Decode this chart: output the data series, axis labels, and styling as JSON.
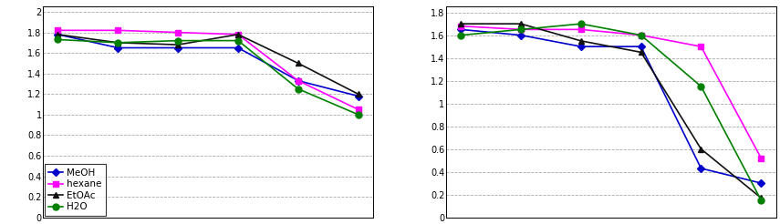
{
  "chart1": {
    "x": [
      1,
      2,
      3,
      4,
      5,
      6
    ],
    "MeOH": [
      1.78,
      1.65,
      1.65,
      1.65,
      1.33,
      1.18
    ],
    "hexane": [
      1.82,
      1.82,
      1.8,
      1.78,
      1.33,
      1.05
    ],
    "EtOAc": [
      1.78,
      1.7,
      1.68,
      1.78,
      1.5,
      1.2
    ],
    "H2O": [
      1.73,
      1.7,
      1.72,
      1.72,
      1.25,
      1.0
    ],
    "ylim": [
      0,
      2.05
    ],
    "yticks": [
      0,
      0.2,
      0.4,
      0.6,
      0.8,
      1.0,
      1.2,
      1.4,
      1.6,
      1.8,
      2.0
    ],
    "yticklabels": [
      "0",
      "0.2",
      "0.4",
      "0.6",
      "0.8",
      "1",
      "1.2",
      "1.4",
      "1.6",
      "1.8",
      "2"
    ]
  },
  "chart2": {
    "x": [
      1,
      2,
      3,
      4,
      5,
      6
    ],
    "MeOH": [
      1.65,
      1.6,
      1.5,
      1.5,
      0.43,
      0.3
    ],
    "hexane": [
      1.68,
      1.65,
      1.65,
      1.6,
      1.5,
      0.52
    ],
    "EtOAc": [
      1.7,
      1.7,
      1.55,
      1.45,
      0.6,
      0.17
    ],
    "H2O": [
      1.6,
      1.65,
      1.7,
      1.6,
      1.15,
      0.15
    ],
    "ylim": [
      0,
      1.85
    ],
    "yticks": [
      0,
      0.2,
      0.4,
      0.6,
      0.8,
      1.0,
      1.2,
      1.4,
      1.6,
      1.8
    ],
    "yticklabels": [
      "0",
      "0.2",
      "0.4",
      "0.6",
      "0.8",
      "1",
      "1.2",
      "1.4",
      "1.6",
      "1.8"
    ]
  },
  "colors": {
    "MeOH": "#0000CC",
    "hexane": "#FF00FF",
    "EtOAc": "#111111",
    "H2O": "#008000"
  },
  "markers": {
    "MeOH": "D",
    "hexane": "s",
    "EtOAc": "^",
    "H2O": "o"
  },
  "markersizes": {
    "MeOH": 4,
    "hexane": 4,
    "EtOAc": 5,
    "H2O": 5
  },
  "series": [
    "MeOH",
    "hexane",
    "EtOAc",
    "H2O"
  ],
  "tick_fontsize": 7,
  "legend_fontsize": 7.5
}
